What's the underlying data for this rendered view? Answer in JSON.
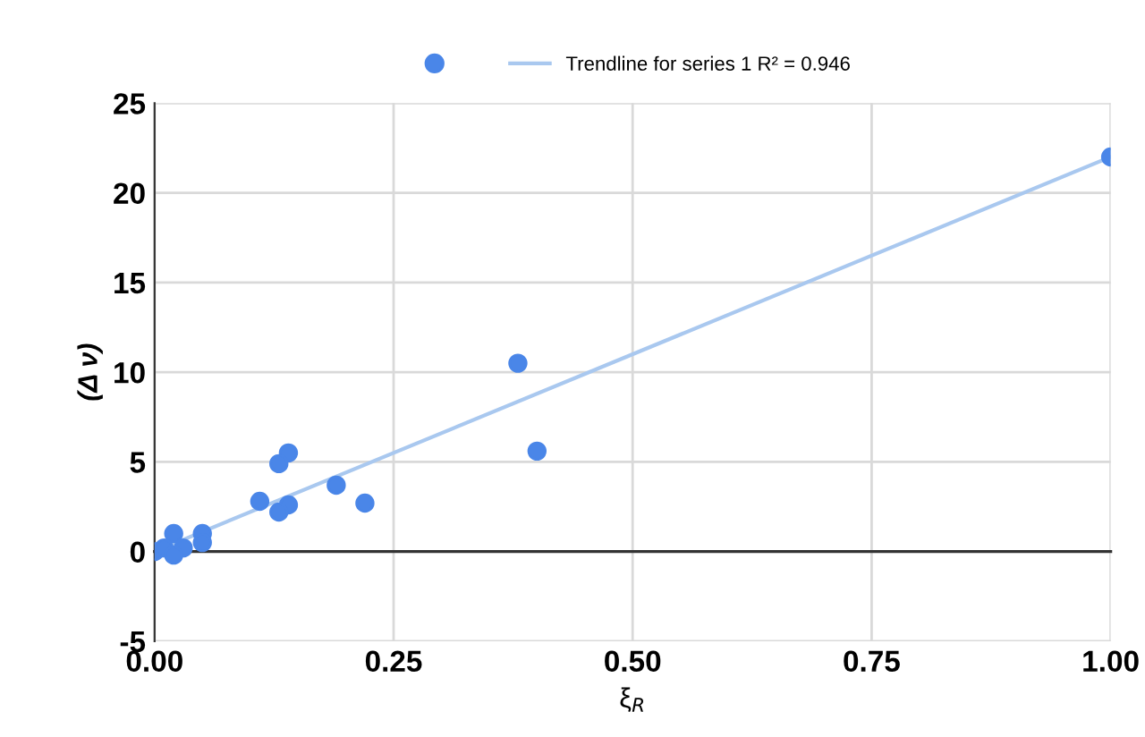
{
  "chart_data": {
    "type": "scatter",
    "xlabel": "ξ$_{R}$",
    "ylabel": "(Δ ν)",
    "xlim": [
      0,
      1.0
    ],
    "ylim": [
      -5,
      25
    ],
    "xticks": [
      {
        "value": 0,
        "label": "0.00"
      },
      {
        "value": 0.25,
        "label": "0.25"
      },
      {
        "value": 0.5,
        "label": "0.50"
      },
      {
        "value": 0.75,
        "label": "0.75"
      },
      {
        "value": 1.0,
        "label": "1.00"
      }
    ],
    "yticks": [
      -5,
      0,
      5,
      10,
      15,
      20,
      25
    ],
    "grid": true,
    "legend": "top",
    "ref_lines": [
      {
        "axis": "y",
        "value": 0,
        "color": "#333333"
      }
    ],
    "series": [
      {
        "color": "#4a86e8",
        "marker": "circle",
        "x": [
          1.0,
          0.38,
          0.4,
          0.14,
          0.13,
          0.19,
          0.11,
          0.22,
          0.14,
          0.13,
          0.05,
          0.05,
          0.02,
          0.0,
          0.01,
          0.03,
          0.02
        ],
        "values": [
          22,
          10.5,
          5.6,
          5.5,
          4.9,
          3.7,
          2.8,
          2.7,
          2.6,
          2.2,
          1.0,
          0.5,
          1.0,
          0,
          0.2,
          0.2,
          -0.2
        ]
      },
      {
        "type": "line",
        "marker": "none",
        "name": "Trendline for series 1 R² = 0.946",
        "color": "#a9c8ef",
        "x": [
          0,
          1.0
        ],
        "values": [
          0,
          22
        ]
      }
    ]
  }
}
